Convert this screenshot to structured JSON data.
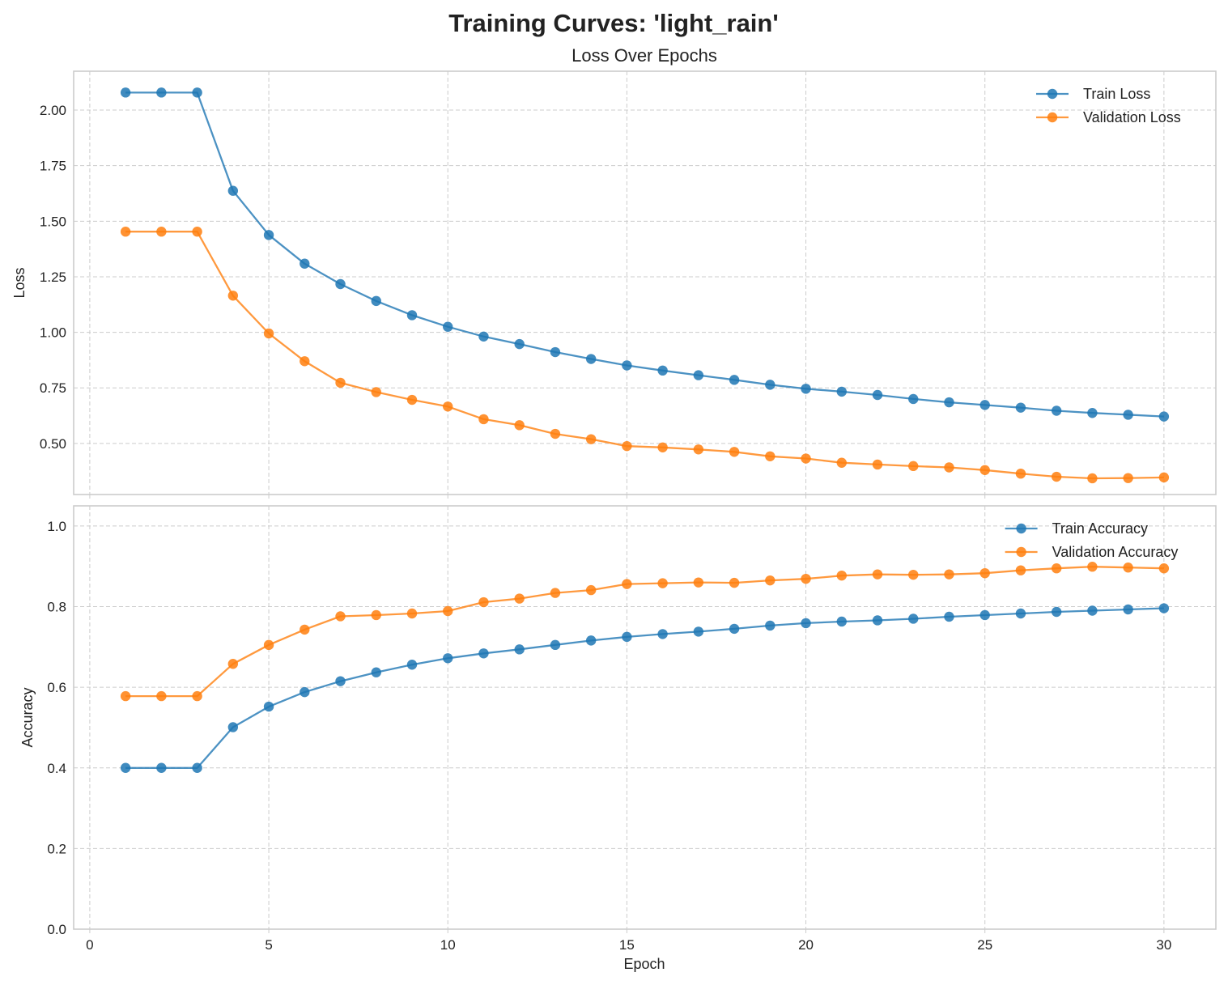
{
  "figure": {
    "suptitle": "Training Curves: 'light_rain'"
  },
  "chart_data": [
    {
      "type": "line",
      "title": "Loss Over Epochs",
      "xlabel": "",
      "ylabel": "Loss",
      "xlim": [
        -0.45,
        31.45
      ],
      "ylim": [
        0.27,
        2.175
      ],
      "xticks": [
        0,
        5,
        10,
        15,
        20,
        25,
        30
      ],
      "xtick_labels_visible": false,
      "yticks": [
        0.5,
        0.75,
        1.0,
        1.25,
        1.5,
        1.75,
        2.0
      ],
      "ytick_labels": [
        "0.50",
        "0.75",
        "1.00",
        "1.25",
        "1.50",
        "1.75",
        "2.00"
      ],
      "grid": true,
      "legend": "top-right",
      "x": [
        1,
        2,
        3,
        4,
        5,
        6,
        7,
        8,
        9,
        10,
        11,
        12,
        13,
        14,
        15,
        16,
        17,
        18,
        19,
        20,
        21,
        22,
        23,
        24,
        25,
        26,
        27,
        28,
        29,
        30
      ],
      "series": [
        {
          "name": "Train Loss",
          "color": "#1f77b4",
          "values": [
            2.079,
            2.079,
            2.079,
            1.637,
            1.438,
            1.309,
            1.217,
            1.141,
            1.077,
            1.025,
            0.981,
            0.947,
            0.911,
            0.88,
            0.851,
            0.828,
            0.807,
            0.786,
            0.764,
            0.746,
            0.733,
            0.718,
            0.7,
            0.685,
            0.673,
            0.661,
            0.647,
            0.637,
            0.629,
            0.621
          ]
        },
        {
          "name": "Validation Loss",
          "color": "#ff7f0e",
          "values": [
            1.453,
            1.453,
            1.453,
            1.165,
            0.995,
            0.87,
            0.773,
            0.731,
            0.696,
            0.666,
            0.609,
            0.582,
            0.543,
            0.519,
            0.488,
            0.482,
            0.473,
            0.462,
            0.442,
            0.432,
            0.413,
            0.405,
            0.398,
            0.392,
            0.38,
            0.364,
            0.35,
            0.343,
            0.344,
            0.347
          ]
        }
      ]
    },
    {
      "type": "line",
      "title": "",
      "xlabel": "Epoch",
      "ylabel": "Accuracy",
      "xlim": [
        -0.45,
        31.45
      ],
      "ylim": [
        0.0,
        1.05
      ],
      "xticks": [
        0,
        5,
        10,
        15,
        20,
        25,
        30
      ],
      "xtick_labels": [
        "0",
        "5",
        "10",
        "15",
        "20",
        "25",
        "30"
      ],
      "yticks": [
        0.0,
        0.2,
        0.4,
        0.6,
        0.8,
        1.0
      ],
      "ytick_labels": [
        "0.0",
        "0.2",
        "0.4",
        "0.6",
        "0.8",
        "1.0"
      ],
      "grid": true,
      "legend": "top-right",
      "x": [
        1,
        2,
        3,
        4,
        5,
        6,
        7,
        8,
        9,
        10,
        11,
        12,
        13,
        14,
        15,
        16,
        17,
        18,
        19,
        20,
        21,
        22,
        23,
        24,
        25,
        26,
        27,
        28,
        29,
        30
      ],
      "series": [
        {
          "name": "Train Accuracy",
          "color": "#1f77b4",
          "values": [
            0.4,
            0.4,
            0.4,
            0.501,
            0.552,
            0.588,
            0.615,
            0.637,
            0.656,
            0.672,
            0.684,
            0.694,
            0.705,
            0.716,
            0.725,
            0.732,
            0.738,
            0.745,
            0.753,
            0.759,
            0.763,
            0.766,
            0.77,
            0.775,
            0.779,
            0.783,
            0.787,
            0.79,
            0.793,
            0.796
          ]
        },
        {
          "name": "Validation Accuracy",
          "color": "#ff7f0e",
          "values": [
            0.578,
            0.578,
            0.578,
            0.658,
            0.705,
            0.743,
            0.776,
            0.779,
            0.783,
            0.789,
            0.811,
            0.82,
            0.834,
            0.841,
            0.856,
            0.858,
            0.86,
            0.859,
            0.865,
            0.869,
            0.877,
            0.88,
            0.879,
            0.88,
            0.883,
            0.89,
            0.895,
            0.899,
            0.897,
            0.895
          ]
        }
      ]
    }
  ]
}
